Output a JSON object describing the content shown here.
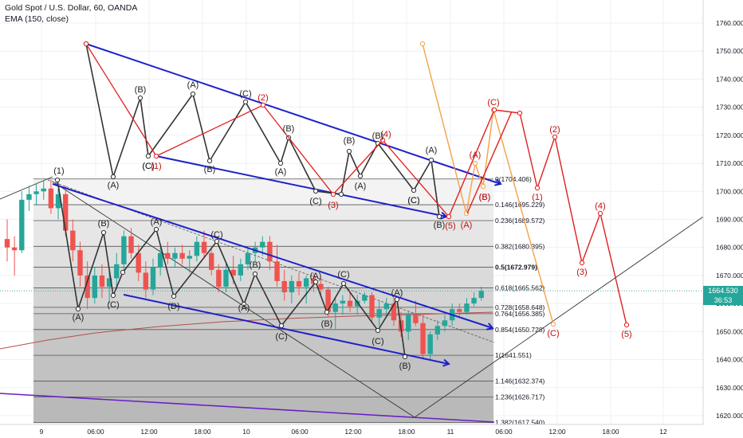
{
  "header": {
    "symbol": "Gold Spot / U.S. Dollar, 60, OANDA",
    "indicator": "EMA (150, close)"
  },
  "price_axis": {
    "ticks": [
      "1760.000",
      "1750.000",
      "1740.000",
      "1730.000",
      "1720.000",
      "1710.000",
      "1700.000",
      "1690.000",
      "1680.000",
      "1670.000",
      "1660.000",
      "1650.000",
      "1640.000",
      "1630.000",
      "1620.000"
    ],
    "current_price": "1664.530",
    "countdown": "36:53",
    "current_color": "#26a69a"
  },
  "time_axis": {
    "labels": [
      "9",
      "06:00",
      "12:00",
      "18:00",
      "10",
      "06:00",
      "12:00",
      "18:00",
      "11",
      "06:00",
      "12:00",
      "18:00",
      "12"
    ]
  },
  "fib_levels": [
    {
      "label": "0(1704.406)",
      "bold": false
    },
    {
      "label": "0.146(1695.229)",
      "bold": false
    },
    {
      "label": "0.236(1689.572)",
      "bold": false
    },
    {
      "label": "0.382(1680.395)",
      "bold": false
    },
    {
      "label": "0.5(1672.979)",
      "bold": true
    },
    {
      "label": "0.618(1665.562)",
      "bold": false
    },
    {
      "label": "0.728(1658.648)",
      "bold": false
    },
    {
      "label": "0.764(1656.385)",
      "bold": false
    },
    {
      "label": "0.854(1650.728)",
      "bold": false
    },
    {
      "label": "1(1641.551)",
      "bold": false
    },
    {
      "label": "1.146(1632.374)",
      "bold": false
    },
    {
      "label": "1.236(1626.717)",
      "bold": false
    },
    {
      "label": "1.382(1617.540)",
      "bold": false
    }
  ],
  "colors": {
    "bull": "#26a69a",
    "bear": "#ef5350",
    "channel": "#1e22c8",
    "red_wave": "#e01f1f",
    "orange_wave": "#f5a14a",
    "black_wave": "#333333",
    "ema": "#b2504a",
    "purple": "#6a1fc6",
    "label_red": "#c01010"
  },
  "wave_labels": [
    {
      "text": "(1)",
      "color": "black"
    },
    {
      "text": "(A)",
      "color": "black"
    },
    {
      "text": "(B)",
      "color": "black"
    },
    {
      "text": "(C)",
      "color": "black"
    },
    {
      "text": "(A)",
      "color": "black"
    },
    {
      "text": "(D)",
      "color": "black"
    },
    {
      "text": "(C)",
      "color": "black"
    },
    {
      "text": "(A)",
      "color": "black"
    },
    {
      "text": "(B)",
      "color": "black"
    },
    {
      "text": "(C)",
      "color": "black"
    },
    {
      "text": "(A)",
      "color": "black"
    },
    {
      "text": "(B)",
      "color": "black"
    },
    {
      "text": "(C)",
      "color": "black"
    },
    {
      "text": "(A)",
      "color": "black"
    },
    {
      "text": "(B)",
      "color": "black"
    },
    {
      "text": "(C)",
      "color": "black"
    },
    {
      "text": "(B)",
      "color": "black"
    },
    {
      "text": "(A)",
      "color": "black"
    },
    {
      "text": "(B)",
      "color": "black"
    },
    {
      "text": "(C)",
      "color": "black"
    },
    {
      "text": "(A)",
      "color": "black"
    },
    {
      "text": "(B)",
      "color": "black"
    },
    {
      "text": "(C)",
      "color": "black"
    },
    {
      "text": "(A)",
      "color": "black"
    },
    {
      "text": "(B)",
      "color": "black"
    },
    {
      "text": "(C)",
      "color": "black"
    },
    {
      "text": "(A)",
      "color": "black"
    },
    {
      "text": "(B)",
      "color": "black"
    },
    {
      "text": "(C)",
      "color": "black"
    },
    {
      "text": "(C)",
      "color": "black"
    },
    {
      "text": "(A)",
      "color": "black"
    },
    {
      "text": "(B)",
      "color": "black"
    },
    {
      "text": "(C)",
      "color": "black"
    },
    {
      "text": "(1)",
      "color": "red"
    },
    {
      "text": "(2)",
      "color": "red"
    },
    {
      "text": "(3)",
      "color": "red"
    },
    {
      "text": "(4)",
      "color": "red"
    },
    {
      "text": "(5)",
      "color": "red"
    },
    {
      "text": "(A)",
      "color": "red"
    },
    {
      "text": "(B)",
      "color": "red"
    },
    {
      "text": "(C)",
      "color": "red"
    },
    {
      "text": "(A)",
      "color": "red"
    },
    {
      "text": "(B)",
      "color": "red"
    },
    {
      "text": "(1)",
      "color": "red"
    },
    {
      "text": "(2)",
      "color": "red"
    },
    {
      "text": "(3)",
      "color": "red"
    },
    {
      "text": "(4)",
      "color": "red"
    },
    {
      "text": "(5)",
      "color": "red"
    },
    {
      "text": "(C)",
      "color": "red"
    }
  ],
  "chart_data": {
    "type": "candlestick",
    "title": "Gold Spot / U.S. Dollar, 60, OANDA",
    "ylim": [
      1615,
      1768
    ],
    "grid": true,
    "fib_retracement": {
      "levels": [
        0,
        0.146,
        0.236,
        0.382,
        0.5,
        0.618,
        0.728,
        0.764,
        0.854,
        1,
        1.146,
        1.236,
        1.382
      ],
      "prices": [
        1704.406,
        1695.229,
        1689.572,
        1680.395,
        1672.979,
        1665.562,
        1658.648,
        1656.385,
        1650.728,
        1641.551,
        1632.374,
        1626.717,
        1617.54
      ]
    },
    "candles": [
      {
        "t": "9 00:00",
        "o": 1683,
        "h": 1690,
        "l": 1675,
        "c": 1680
      },
      {
        "t": "9 01:00",
        "o": 1680,
        "h": 1684,
        "l": 1670,
        "c": 1679
      },
      {
        "t": "9 02:00",
        "o": 1679,
        "h": 1700,
        "l": 1678,
        "c": 1697
      },
      {
        "t": "9 03:00",
        "o": 1697,
        "h": 1702,
        "l": 1693,
        "c": 1699
      },
      {
        "t": "9 04:00",
        "o": 1699,
        "h": 1703,
        "l": 1695,
        "c": 1700
      },
      {
        "t": "9 05:00",
        "o": 1700,
        "h": 1704,
        "l": 1697,
        "c": 1701
      },
      {
        "t": "9 06:00",
        "o": 1701,
        "h": 1704,
        "l": 1692,
        "c": 1694
      },
      {
        "t": "9 07:00",
        "o": 1694,
        "h": 1701,
        "l": 1690,
        "c": 1699
      },
      {
        "t": "9 08:00",
        "o": 1699,
        "h": 1702,
        "l": 1684,
        "c": 1686
      },
      {
        "t": "9 09:00",
        "o": 1686,
        "h": 1690,
        "l": 1675,
        "c": 1679
      },
      {
        "t": "9 10:00",
        "o": 1679,
        "h": 1682,
        "l": 1666,
        "c": 1670
      },
      {
        "t": "9 11:00",
        "o": 1670,
        "h": 1675,
        "l": 1658,
        "c": 1662
      },
      {
        "t": "9 12:00",
        "o": 1662,
        "h": 1673,
        "l": 1660,
        "c": 1670
      },
      {
        "t": "9 13:00",
        "o": 1670,
        "h": 1674,
        "l": 1662,
        "c": 1666
      },
      {
        "t": "9 14:00",
        "o": 1666,
        "h": 1672,
        "l": 1660,
        "c": 1669
      },
      {
        "t": "9 15:00",
        "o": 1669,
        "h": 1678,
        "l": 1665,
        "c": 1674
      },
      {
        "t": "9 16:00",
        "o": 1674,
        "h": 1686,
        "l": 1672,
        "c": 1684
      },
      {
        "t": "9 17:00",
        "o": 1684,
        "h": 1687,
        "l": 1676,
        "c": 1678
      },
      {
        "t": "9 18:00",
        "o": 1678,
        "h": 1681,
        "l": 1668,
        "c": 1671
      },
      {
        "t": "9 19:00",
        "o": 1671,
        "h": 1675,
        "l": 1662,
        "c": 1665
      },
      {
        "t": "9 20:00",
        "o": 1665,
        "h": 1676,
        "l": 1663,
        "c": 1673
      },
      {
        "t": "9 21:00",
        "o": 1673,
        "h": 1680,
        "l": 1670,
        "c": 1678
      },
      {
        "t": "9 22:00",
        "o": 1678,
        "h": 1682,
        "l": 1674,
        "c": 1676
      },
      {
        "t": "9 23:00",
        "o": 1676,
        "h": 1680,
        "l": 1673,
        "c": 1678
      },
      {
        "t": "10 00:00",
        "o": 1678,
        "h": 1681,
        "l": 1674,
        "c": 1676
      },
      {
        "t": "10 01:00",
        "o": 1676,
        "h": 1679,
        "l": 1671,
        "c": 1677
      },
      {
        "t": "10 02:00",
        "o": 1677,
        "h": 1684,
        "l": 1675,
        "c": 1682
      },
      {
        "t": "10 03:00",
        "o": 1682,
        "h": 1686,
        "l": 1676,
        "c": 1678
      },
      {
        "t": "10 04:00",
        "o": 1678,
        "h": 1680,
        "l": 1670,
        "c": 1672
      },
      {
        "t": "10 05:00",
        "o": 1672,
        "h": 1674,
        "l": 1664,
        "c": 1666
      },
      {
        "t": "10 06:00",
        "o": 1666,
        "h": 1675,
        "l": 1664,
        "c": 1672
      },
      {
        "t": "10 07:00",
        "o": 1672,
        "h": 1677,
        "l": 1667,
        "c": 1670
      },
      {
        "t": "10 08:00",
        "o": 1670,
        "h": 1676,
        "l": 1668,
        "c": 1674
      },
      {
        "t": "10 09:00",
        "o": 1674,
        "h": 1680,
        "l": 1672,
        "c": 1678
      },
      {
        "t": "10 10:00",
        "o": 1678,
        "h": 1682,
        "l": 1675,
        "c": 1680
      },
      {
        "t": "10 11:00",
        "o": 1680,
        "h": 1684,
        "l": 1677,
        "c": 1682
      },
      {
        "t": "10 12:00",
        "o": 1682,
        "h": 1684,
        "l": 1672,
        "c": 1675
      },
      {
        "t": "10 13:00",
        "o": 1675,
        "h": 1681,
        "l": 1666,
        "c": 1668
      },
      {
        "t": "10 14:00",
        "o": 1668,
        "h": 1672,
        "l": 1661,
        "c": 1664
      },
      {
        "t": "10 15:00",
        "o": 1664,
        "h": 1670,
        "l": 1660,
        "c": 1668
      },
      {
        "t": "10 16:00",
        "o": 1668,
        "h": 1671,
        "l": 1663,
        "c": 1666
      },
      {
        "t": "10 17:00",
        "o": 1666,
        "h": 1670,
        "l": 1660,
        "c": 1669
      },
      {
        "t": "10 18:00",
        "o": 1669,
        "h": 1671,
        "l": 1664,
        "c": 1667
      },
      {
        "t": "10 19:00",
        "o": 1667,
        "h": 1669,
        "l": 1663,
        "c": 1665
      },
      {
        "t": "10 20:00",
        "o": 1665,
        "h": 1666,
        "l": 1655,
        "c": 1657
      },
      {
        "t": "10 21:00",
        "o": 1657,
        "h": 1662,
        "l": 1651,
        "c": 1660
      },
      {
        "t": "10 22:00",
        "o": 1660,
        "h": 1663,
        "l": 1656,
        "c": 1661
      },
      {
        "t": "10 23:00",
        "o": 1661,
        "h": 1664,
        "l": 1657,
        "c": 1659
      },
      {
        "t": "11 00:00",
        "o": 1659,
        "h": 1663,
        "l": 1656,
        "c": 1661
      },
      {
        "t": "11 01:00",
        "o": 1661,
        "h": 1664,
        "l": 1660,
        "c": 1663
      },
      {
        "t": "11 02:00",
        "o": 1663,
        "h": 1664,
        "l": 1653,
        "c": 1655
      },
      {
        "t": "11 03:00",
        "o": 1655,
        "h": 1661,
        "l": 1652,
        "c": 1658
      },
      {
        "t": "11 04:00",
        "o": 1658,
        "h": 1662,
        "l": 1655,
        "c": 1660
      },
      {
        "t": "11 05:00",
        "o": 1660,
        "h": 1662,
        "l": 1652,
        "c": 1654
      },
      {
        "t": "11 06:00",
        "o": 1654,
        "h": 1657,
        "l": 1648,
        "c": 1650
      },
      {
        "t": "11 07:00",
        "o": 1650,
        "h": 1657,
        "l": 1647,
        "c": 1656
      },
      {
        "t": "11 08:00",
        "o": 1656,
        "h": 1661,
        "l": 1652,
        "c": 1653
      },
      {
        "t": "11 09:00",
        "o": 1653,
        "h": 1656,
        "l": 1640,
        "c": 1642
      },
      {
        "t": "11 10:00",
        "o": 1642,
        "h": 1650,
        "l": 1640,
        "c": 1649
      },
      {
        "t": "11 11:00",
        "o": 1649,
        "h": 1654,
        "l": 1647,
        "c": 1652
      },
      {
        "t": "11 12:00",
        "o": 1652,
        "h": 1656,
        "l": 1650,
        "c": 1654
      },
      {
        "t": "11 13:00",
        "o": 1654,
        "h": 1660,
        "l": 1652,
        "c": 1658
      },
      {
        "t": "11 14:00",
        "o": 1658,
        "h": 1660,
        "l": 1655,
        "c": 1657
      },
      {
        "t": "11 15:00",
        "o": 1657,
        "h": 1662,
        "l": 1656,
        "c": 1660
      },
      {
        "t": "11 16:00",
        "o": 1660,
        "h": 1664,
        "l": 1659,
        "c": 1662
      },
      {
        "t": "11 17:00",
        "o": 1662,
        "h": 1666,
        "l": 1661,
        "c": 1664.53
      }
    ]
  }
}
